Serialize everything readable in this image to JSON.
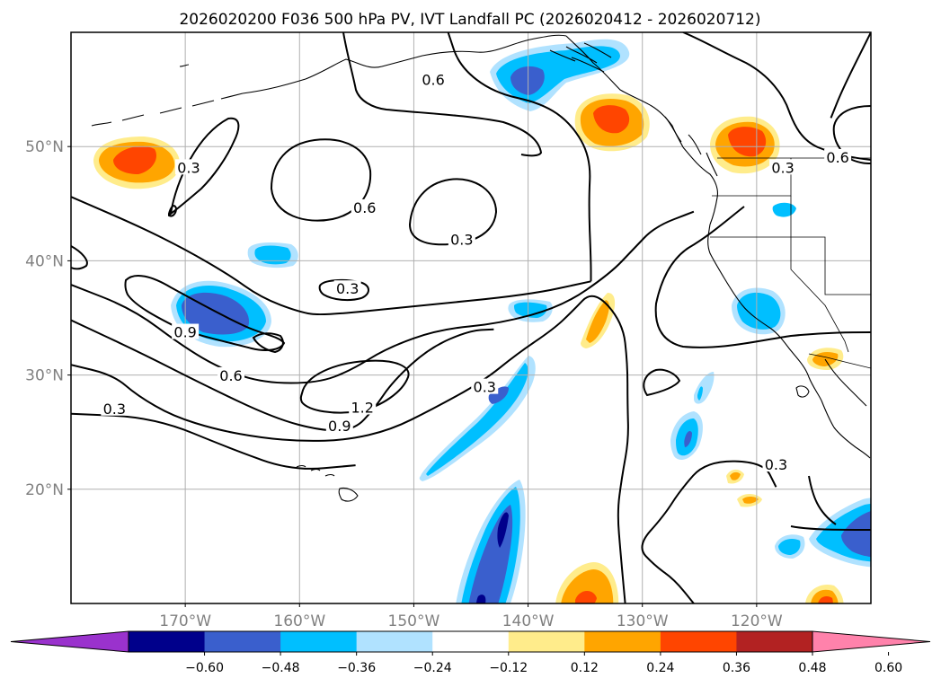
{
  "chart_data": {
    "type": "map-contour",
    "title": "2026020200 F036 500 hPa PV, IVT Landfall PC (2026020412 - 2026020712)",
    "map_extent": {
      "lon_min": -180,
      "lon_max": -110,
      "lat_min": 10,
      "lat_max": 60
    },
    "lon_ticks": [
      {
        "lon": -170,
        "label": "170°W"
      },
      {
        "lon": -160,
        "label": "160°W"
      },
      {
        "lon": -150,
        "label": "150°W"
      },
      {
        "lon": -140,
        "label": "140°W"
      },
      {
        "lon": -130,
        "label": "130°W"
      },
      {
        "lon": -120,
        "label": "120°W"
      }
    ],
    "lat_ticks": [
      {
        "lat": 50,
        "label": "50°N"
      },
      {
        "lat": 40,
        "label": "40°N"
      },
      {
        "lat": 30,
        "label": "30°N"
      },
      {
        "lat": 20,
        "label": "20°N"
      }
    ],
    "colorbar": {
      "levels": [
        -0.72,
        -0.6,
        -0.48,
        -0.36,
        -0.24,
        -0.12,
        0.12,
        0.24,
        0.36,
        0.48,
        0.6,
        0.72
      ],
      "tick_labels": [
        "−0.60",
        "−0.48",
        "−0.36",
        "−0.24",
        "−0.12",
        "0.12",
        "0.24",
        "0.36",
        "0.48",
        "0.60"
      ],
      "colors": [
        "#9a32cd",
        "#00008b",
        "#3a5fcd",
        "#00bfff",
        "#b0e2ff",
        "#ffffff",
        "#ffec8b",
        "#ffa500",
        "#ff4500",
        "#b22222",
        "#ff82ab"
      ],
      "extend": "both"
    },
    "contour_labels": [
      {
        "text": "0.6",
        "lon": -148.3,
        "lat": 55.8
      },
      {
        "text": "0.3",
        "lon": -169.7,
        "lat": 48.1
      },
      {
        "text": "0.6",
        "lon": -154.3,
        "lat": 44.6
      },
      {
        "text": "0.3",
        "lon": -145.8,
        "lat": 41.8
      },
      {
        "text": "0.3",
        "lon": -155.8,
        "lat": 37.5
      },
      {
        "text": "0.9",
        "lon": -170.0,
        "lat": 33.7
      },
      {
        "text": "0.6",
        "lon": -166.0,
        "lat": 29.9
      },
      {
        "text": "0.3",
        "lon": -143.8,
        "lat": 28.9
      },
      {
        "text": "1.2",
        "lon": -154.5,
        "lat": 27.1
      },
      {
        "text": "0.9",
        "lon": -156.5,
        "lat": 25.5
      },
      {
        "text": "0.3",
        "lon": -176.2,
        "lat": 27.0
      },
      {
        "text": "0.3",
        "lon": -117.7,
        "lat": 48.1
      },
      {
        "text": "0.6",
        "lon": -112.9,
        "lat": 49.0
      },
      {
        "text": "0.3",
        "lon": -118.3,
        "lat": 22.1
      }
    ],
    "contours": [
      {
        "level": 0.6,
        "points": [
          [
            -180,
            45.6
          ],
          [
            -174,
            43
          ],
          [
            -170,
            41
          ],
          [
            -166.2,
            38.8
          ],
          [
            -163.4,
            36.8
          ],
          [
            -160,
            35.5
          ],
          [
            -158,
            35.2
          ],
          [
            -150.3,
            36.0
          ],
          [
            -140,
            37.0
          ],
          [
            -134.5,
            38.2
          ]
        ]
      },
      {
        "level": 0.6,
        "points": [
          [
            -147,
            60
          ],
          [
            -146,
            57
          ],
          [
            -143,
            54.7
          ],
          [
            -138.8,
            53.8
          ],
          [
            -136.2,
            52.0
          ],
          [
            -134.5,
            49.0
          ],
          [
            -134.7,
            45.0
          ],
          [
            -134.5,
            40.0
          ],
          [
            -134.5,
            38.2
          ]
        ]
      },
      {
        "level": 0.3,
        "points": [
          [
            -180,
            37.9
          ],
          [
            -174.6,
            35.8
          ],
          [
            -170.2,
            32.5
          ],
          [
            -166.8,
            30.5
          ],
          [
            -163.1,
            29.3
          ],
          [
            -158.4,
            29.3
          ],
          [
            -155.5,
            30.4
          ],
          [
            -152.3,
            32.4
          ],
          [
            -147.8,
            34.0
          ],
          [
            -142.5,
            34.5
          ],
          [
            -137.0,
            36.0
          ],
          [
            -132.8,
            38.9
          ],
          [
            -130.8,
            41.0
          ],
          [
            -128.9,
            43.0
          ],
          [
            -125.5,
            44.3
          ]
        ]
      },
      {
        "level": 0.9,
        "points": [
          [
            -180,
            34.8
          ],
          [
            -174,
            32
          ],
          [
            -168.5,
            29.2
          ],
          [
            -162.2,
            26.2
          ],
          [
            -158,
            25.1
          ],
          [
            -155.2,
            25.2
          ],
          [
            -153.5,
            27.0
          ],
          [
            -151.8,
            29.5
          ],
          [
            -148.6,
            32.4
          ],
          [
            -145.1,
            33.9
          ],
          [
            -143,
            34
          ]
        ]
      },
      {
        "level": 0.3,
        "points": [
          [
            -180,
            30.9
          ],
          [
            -176.3,
            30.0
          ],
          [
            -174.2,
            28.2
          ],
          [
            -171.1,
            26.4
          ],
          [
            -167.2,
            25.2
          ],
          [
            -163.3,
            24.5
          ],
          [
            -159.7,
            24.2
          ],
          [
            -155.9,
            24.3
          ],
          [
            -152.0,
            25.2
          ],
          [
            -148.4,
            27.0
          ],
          [
            -144.0,
            29.4
          ],
          [
            -140.9,
            31.9
          ],
          [
            -137.8,
            34.0
          ],
          [
            -136.2,
            35.5
          ],
          [
            -134.3,
            37.5
          ],
          [
            -131.7,
            34.6
          ],
          [
            -131.3,
            31.0
          ],
          [
            -131.3,
            27.5
          ],
          [
            -131.2,
            24.3
          ],
          [
            -131.8,
            21.0
          ],
          [
            -132.2,
            18.0
          ],
          [
            -131.9,
            14.3
          ],
          [
            -131.5,
            10
          ]
        ]
      },
      {
        "level": 0.3,
        "points": [
          [
            -180,
            26.6
          ],
          [
            -172.7,
            26.3
          ],
          [
            -165.9,
            23.5
          ],
          [
            -160.6,
            21.6
          ],
          [
            -155.1,
            22.1
          ]
        ]
      },
      {
        "level": 0.3,
        "points": [
          [
            -118.3,
            20.2
          ],
          [
            -119.4,
            22.4
          ],
          [
            -124.4,
            22.5
          ],
          [
            -126.7,
            19.9
          ],
          [
            -128.1,
            17.7
          ],
          [
            -130.5,
            15.0
          ],
          [
            -128.9,
            13.3
          ],
          [
            -127.2,
            12.1
          ],
          [
            -125.5,
            10
          ]
        ]
      },
      {
        "level": 0.6,
        "points": [
          [
            -110,
            60
          ],
          [
            -112.5,
            55.0
          ],
          [
            -113.5,
            52.5
          ]
        ]
      }
    ]
  }
}
